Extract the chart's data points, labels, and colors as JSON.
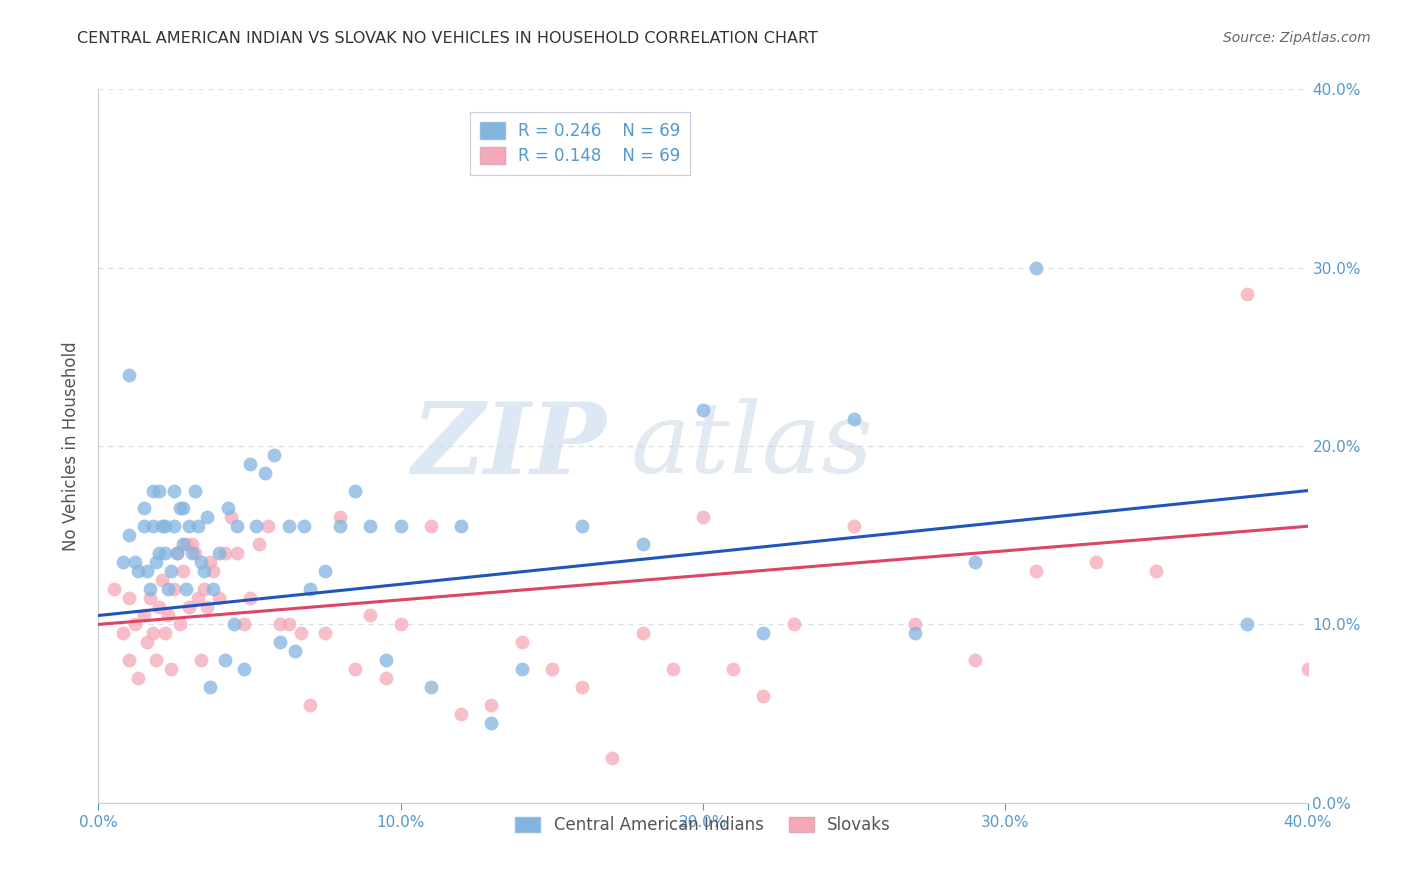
{
  "title": "CENTRAL AMERICAN INDIAN VS SLOVAK NO VEHICLES IN HOUSEHOLD CORRELATION CHART",
  "source": "Source: ZipAtlas.com",
  "ylabel": "No Vehicles in Household",
  "watermark_zip": "ZIP",
  "watermark_atlas": "atlas",
  "xlim": [
    0.0,
    0.4
  ],
  "ylim": [
    0.0,
    0.4
  ],
  "xticks": [
    0.0,
    0.1,
    0.2,
    0.3,
    0.4
  ],
  "yticks": [
    0.0,
    0.1,
    0.2,
    0.3,
    0.4
  ],
  "blue_R": "0.246",
  "blue_N": "69",
  "pink_R": "0.148",
  "pink_N": "69",
  "blue_color": "#82b4e0",
  "pink_color": "#f5a8b8",
  "blue_line_color": "#2255bb",
  "pink_line_color": "#dd4466",
  "title_color": "#333333",
  "tick_color": "#5599cc",
  "grid_color": "#d8dde8",
  "background_color": "#ffffff",
  "legend_label_blue": "Central American Indians",
  "legend_label_pink": "Slovaks",
  "blue_scatter_x": [
    0.008,
    0.01,
    0.01,
    0.012,
    0.013,
    0.015,
    0.015,
    0.016,
    0.017,
    0.018,
    0.018,
    0.019,
    0.02,
    0.02,
    0.021,
    0.022,
    0.022,
    0.023,
    0.024,
    0.025,
    0.025,
    0.026,
    0.027,
    0.028,
    0.028,
    0.029,
    0.03,
    0.031,
    0.032,
    0.033,
    0.034,
    0.035,
    0.036,
    0.037,
    0.038,
    0.04,
    0.042,
    0.043,
    0.045,
    0.046,
    0.048,
    0.05,
    0.052,
    0.055,
    0.058,
    0.06,
    0.063,
    0.065,
    0.068,
    0.07,
    0.075,
    0.08,
    0.085,
    0.09,
    0.095,
    0.1,
    0.11,
    0.12,
    0.13,
    0.14,
    0.16,
    0.18,
    0.2,
    0.22,
    0.25,
    0.27,
    0.29,
    0.31,
    0.38
  ],
  "blue_scatter_y": [
    0.135,
    0.24,
    0.15,
    0.135,
    0.13,
    0.165,
    0.155,
    0.13,
    0.12,
    0.175,
    0.155,
    0.135,
    0.175,
    0.14,
    0.155,
    0.155,
    0.14,
    0.12,
    0.13,
    0.175,
    0.155,
    0.14,
    0.165,
    0.165,
    0.145,
    0.12,
    0.155,
    0.14,
    0.175,
    0.155,
    0.135,
    0.13,
    0.16,
    0.065,
    0.12,
    0.14,
    0.08,
    0.165,
    0.1,
    0.155,
    0.075,
    0.19,
    0.155,
    0.185,
    0.195,
    0.09,
    0.155,
    0.085,
    0.155,
    0.12,
    0.13,
    0.155,
    0.175,
    0.155,
    0.08,
    0.155,
    0.065,
    0.155,
    0.045,
    0.075,
    0.155,
    0.145,
    0.22,
    0.095,
    0.215,
    0.095,
    0.135,
    0.3,
    0.1
  ],
  "pink_scatter_x": [
    0.005,
    0.008,
    0.01,
    0.01,
    0.012,
    0.013,
    0.015,
    0.016,
    0.017,
    0.018,
    0.019,
    0.02,
    0.021,
    0.022,
    0.023,
    0.024,
    0.025,
    0.026,
    0.027,
    0.028,
    0.029,
    0.03,
    0.031,
    0.032,
    0.033,
    0.034,
    0.035,
    0.036,
    0.037,
    0.038,
    0.04,
    0.042,
    0.044,
    0.046,
    0.048,
    0.05,
    0.053,
    0.056,
    0.06,
    0.063,
    0.067,
    0.07,
    0.075,
    0.08,
    0.085,
    0.09,
    0.095,
    0.1,
    0.11,
    0.12,
    0.13,
    0.14,
    0.15,
    0.16,
    0.17,
    0.18,
    0.19,
    0.2,
    0.21,
    0.22,
    0.23,
    0.25,
    0.27,
    0.29,
    0.31,
    0.33,
    0.35,
    0.38,
    0.4
  ],
  "pink_scatter_y": [
    0.12,
    0.095,
    0.115,
    0.08,
    0.1,
    0.07,
    0.105,
    0.09,
    0.115,
    0.095,
    0.08,
    0.11,
    0.125,
    0.095,
    0.105,
    0.075,
    0.12,
    0.14,
    0.1,
    0.13,
    0.145,
    0.11,
    0.145,
    0.14,
    0.115,
    0.08,
    0.12,
    0.11,
    0.135,
    0.13,
    0.115,
    0.14,
    0.16,
    0.14,
    0.1,
    0.115,
    0.145,
    0.155,
    0.1,
    0.1,
    0.095,
    0.055,
    0.095,
    0.16,
    0.075,
    0.105,
    0.07,
    0.1,
    0.155,
    0.05,
    0.055,
    0.09,
    0.075,
    0.065,
    0.025,
    0.095,
    0.075,
    0.16,
    0.075,
    0.06,
    0.1,
    0.155,
    0.1,
    0.08,
    0.13,
    0.135,
    0.13,
    0.285,
    0.075
  ],
  "blue_line_x": [
    0.0,
    0.4
  ],
  "blue_line_y": [
    0.105,
    0.175
  ],
  "pink_line_x": [
    0.0,
    0.4
  ],
  "pink_line_y": [
    0.1,
    0.155
  ]
}
